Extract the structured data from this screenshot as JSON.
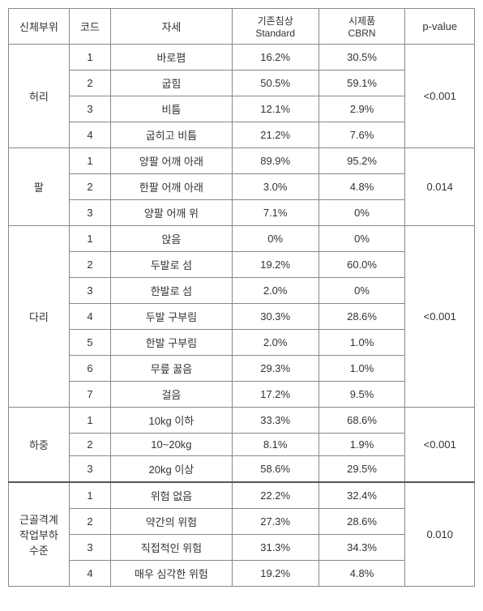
{
  "headers": {
    "body_part": "신체부위",
    "code": "코드",
    "posture": "자세",
    "standard_line1": "기존침상",
    "standard_line2": "Standard",
    "cbrn_line1": "시제품",
    "cbrn_line2": "CBRN",
    "pvalue": "p-value"
  },
  "groups": [
    {
      "name": "허리",
      "pvalue": "<0.001",
      "rows": [
        {
          "code": "1",
          "posture": "바로폄",
          "standard": "16.2%",
          "cbrn": "30.5%"
        },
        {
          "code": "2",
          "posture": "굽힘",
          "standard": "50.5%",
          "cbrn": "59.1%"
        },
        {
          "code": "3",
          "posture": "비틈",
          "standard": "12.1%",
          "cbrn": "2.9%"
        },
        {
          "code": "4",
          "posture": "굽히고 비틈",
          "standard": "21.2%",
          "cbrn": "7.6%"
        }
      ]
    },
    {
      "name": "팔",
      "pvalue": "0.014",
      "rows": [
        {
          "code": "1",
          "posture": "양팔 어깨 아래",
          "standard": "89.9%",
          "cbrn": "95.2%"
        },
        {
          "code": "2",
          "posture": "한팔 어깨 아래",
          "standard": "3.0%",
          "cbrn": "4.8%"
        },
        {
          "code": "3",
          "posture": "양팔 어깨 위",
          "standard": "7.1%",
          "cbrn": "0%"
        }
      ]
    },
    {
      "name": "다리",
      "pvalue": "<0.001",
      "rows": [
        {
          "code": "1",
          "posture": "앉음",
          "standard": "0%",
          "cbrn": "0%"
        },
        {
          "code": "2",
          "posture": "두발로 섬",
          "standard": "19.2%",
          "cbrn": "60.0%"
        },
        {
          "code": "3",
          "posture": "한발로 섬",
          "standard": "2.0%",
          "cbrn": "0%"
        },
        {
          "code": "4",
          "posture": "두발 구부림",
          "standard": "30.3%",
          "cbrn": "28.6%"
        },
        {
          "code": "5",
          "posture": "한발 구부림",
          "standard": "2.0%",
          "cbrn": "1.0%"
        },
        {
          "code": "6",
          "posture": "무릎 꿇음",
          "standard": "29.3%",
          "cbrn": "1.0%"
        },
        {
          "code": "7",
          "posture": "걸음",
          "standard": "17.2%",
          "cbrn": "9.5%"
        }
      ]
    },
    {
      "name": "하중",
      "pvalue": "<0.001",
      "rows": [
        {
          "code": "1",
          "posture": "10kg 이하",
          "standard": "33.3%",
          "cbrn": "68.6%"
        },
        {
          "code": "2",
          "posture": "10~20kg",
          "standard": "8.1%",
          "cbrn": "1.9%"
        },
        {
          "code": "3",
          "posture": "20kg 이상",
          "standard": "58.6%",
          "cbrn": "29.5%"
        }
      ]
    },
    {
      "name": "근골격계\n작업부하\n수준",
      "pvalue": "0.010",
      "thick_top": true,
      "rows": [
        {
          "code": "1",
          "posture": "위험 없음",
          "standard": "22.2%",
          "cbrn": "32.4%"
        },
        {
          "code": "2",
          "posture": "약간의 위험",
          "standard": "27.3%",
          "cbrn": "28.6%"
        },
        {
          "code": "3",
          "posture": "직접적인 위험",
          "standard": "31.3%",
          "cbrn": "34.3%"
        },
        {
          "code": "4",
          "posture": "매우 심각한 위험",
          "standard": "19.2%",
          "cbrn": "4.8%"
        }
      ]
    }
  ]
}
